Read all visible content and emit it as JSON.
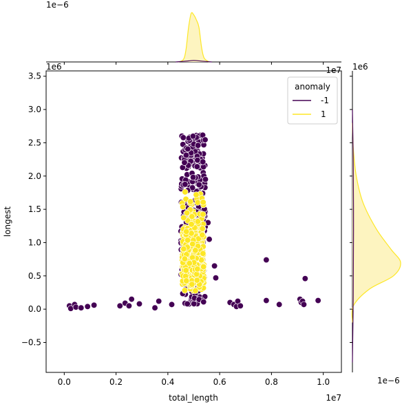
{
  "chart_data": {
    "type": "scatter",
    "xlabel": "total_length",
    "ylabel": "longest",
    "x_exponent_label": "1e7",
    "y_exponent_label": "1e6",
    "top_marginal_exponent_label": "1e−6",
    "right_marginal_exponent_label_top": "1e6",
    "right_marginal_exponent_label_bottom": "1e−6",
    "xlim": [
      -0.07,
      1.07
    ],
    "ylim": [
      -0.95,
      3.58
    ],
    "x_ticks": [
      0.0,
      0.2,
      0.4,
      0.6,
      0.8,
      1.0
    ],
    "x_tick_labels": [
      "0.0",
      "0.2",
      "0.4",
      "0.6",
      "0.8",
      "1.0"
    ],
    "y_ticks": [
      -0.5,
      0.0,
      0.5,
      1.0,
      1.5,
      2.0,
      2.5,
      3.0,
      3.5
    ],
    "y_tick_labels": [
      "−0.5",
      "0.0",
      "0.5",
      "1.0",
      "1.5",
      "2.0",
      "2.5",
      "3.0",
      "3.5"
    ],
    "legend": {
      "title": "anomaly",
      "placement": "top-right",
      "entries": [
        {
          "label": "-1",
          "color": "#440154"
        },
        {
          "label": "1",
          "color": "#fde725"
        }
      ]
    },
    "colors": {
      "anomaly": "#440154",
      "normal": "#fde725",
      "normal_fill": "#fdf4c0"
    },
    "series": [
      {
        "legend_label": "-1",
        "cluster": {
          "x_range": [
            0.45,
            0.545
          ],
          "y_range": [
            0.05,
            2.62
          ],
          "count": 300
        },
        "points": [
          {
            "x": 0.02,
            "y": 0.05
          },
          {
            "x": 0.025,
            "y": 0.01
          },
          {
            "x": 0.04,
            "y": 0.07
          },
          {
            "x": 0.045,
            "y": 0.03
          },
          {
            "x": 0.065,
            "y": 0.02
          },
          {
            "x": 0.09,
            "y": 0.04
          },
          {
            "x": 0.115,
            "y": 0.06
          },
          {
            "x": 0.215,
            "y": 0.05
          },
          {
            "x": 0.235,
            "y": 0.09
          },
          {
            "x": 0.25,
            "y": 0.05
          },
          {
            "x": 0.26,
            "y": 0.15
          },
          {
            "x": 0.29,
            "y": 0.08
          },
          {
            "x": 0.35,
            "y": 0.02
          },
          {
            "x": 0.365,
            "y": 0.12
          },
          {
            "x": 0.415,
            "y": 0.07
          },
          {
            "x": 0.475,
            "y": 0.08
          },
          {
            "x": 0.58,
            "y": 0.65
          },
          {
            "x": 0.585,
            "y": 0.47
          },
          {
            "x": 0.56,
            "y": 1.05
          },
          {
            "x": 0.555,
            "y": 1.3
          },
          {
            "x": 0.545,
            "y": 1.95
          },
          {
            "x": 0.64,
            "y": 0.1
          },
          {
            "x": 0.655,
            "y": 0.07
          },
          {
            "x": 0.665,
            "y": 0.04
          },
          {
            "x": 0.67,
            "y": 0.12
          },
          {
            "x": 0.68,
            "y": 0.05
          },
          {
            "x": 0.78,
            "y": 0.74
          },
          {
            "x": 0.78,
            "y": 0.13
          },
          {
            "x": 0.83,
            "y": 0.07
          },
          {
            "x": 0.91,
            "y": 0.15
          },
          {
            "x": 0.915,
            "y": 0.1
          },
          {
            "x": 0.92,
            "y": 0.12
          },
          {
            "x": 0.925,
            "y": 0.07
          },
          {
            "x": 0.93,
            "y": 0.46
          },
          {
            "x": 0.98,
            "y": 0.13
          }
        ]
      },
      {
        "legend_label": "1",
        "cluster": {
          "x_range": [
            0.45,
            0.545
          ],
          "y_range": [
            0.05,
            2.2
          ],
          "y_center": 0.65,
          "count": 450
        },
        "points": []
      }
    ],
    "marginal_top": {
      "normal_density_x": [
        0.44,
        0.46,
        0.47,
        0.48,
        0.49,
        0.5,
        0.51,
        0.52,
        0.53,
        0.54,
        0.56
      ],
      "normal_density_y": [
        0.0,
        0.05,
        0.25,
        0.7,
        0.98,
        0.95,
        0.85,
        0.7,
        0.3,
        0.08,
        0.0
      ]
    },
    "marginal_right": {
      "normal_density_y": [
        -0.2,
        0.05,
        0.3,
        0.5,
        0.7,
        0.9,
        1.2,
        1.6,
        2.0,
        2.4,
        2.8
      ],
      "normal_density_x": [
        0.0,
        0.02,
        0.35,
        0.85,
        1.0,
        0.8,
        0.5,
        0.22,
        0.08,
        0.02,
        0.0
      ]
    }
  }
}
